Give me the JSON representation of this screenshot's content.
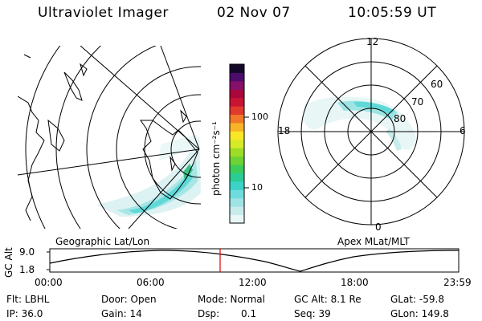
{
  "header": {
    "instrument": "Ultraviolet Imager",
    "date": "02 Nov 07",
    "time": "10:05:59 UT"
  },
  "colorbar": {
    "unit_label": "photon cm⁻²s⁻¹",
    "ticks": [
      "100",
      "10"
    ],
    "colors": [
      "#e8f6f6",
      "#c8ecec",
      "#9fe4e4",
      "#6edcdc",
      "#3cd2c8",
      "#2ccc96",
      "#3ccc5a",
      "#6cd236",
      "#9edc28",
      "#d6ea28",
      "#f8e828",
      "#f8b428",
      "#f07828",
      "#e03a2c",
      "#c81432",
      "#a8083c",
      "#84106a",
      "#4c0c6a",
      "#14082a"
    ]
  },
  "maps": {
    "geo_label": "Geographic Lat/Lon",
    "apex_label": "Apex MLat/MLT",
    "polar": {
      "mlt_labels": {
        "top": "12",
        "left": "18",
        "right": "6",
        "bottom": "0"
      },
      "lat_labels": [
        "60",
        "70",
        "80"
      ]
    }
  },
  "altitude_plot": {
    "ylabel": "GC Alt",
    "y_ticks": [
      "9.0",
      "1.8"
    ],
    "x_ticks": [
      "00:00",
      "06:00",
      "12:00",
      "18:00",
      "23:59"
    ]
  },
  "info": {
    "flt": "Flt: LBHL",
    "ip": "IP: 36.0",
    "door": "Door: Open",
    "gain": "Gain: 14",
    "mode": "Mode: Normal",
    "dsp_label": "Dsp:",
    "dsp_value": "0.1",
    "gc_alt": "GC Alt: 8.1 Re",
    "seq": "Seq: 39",
    "glat": "GLat: -59.8",
    "glon": "GLon: 149.8"
  }
}
